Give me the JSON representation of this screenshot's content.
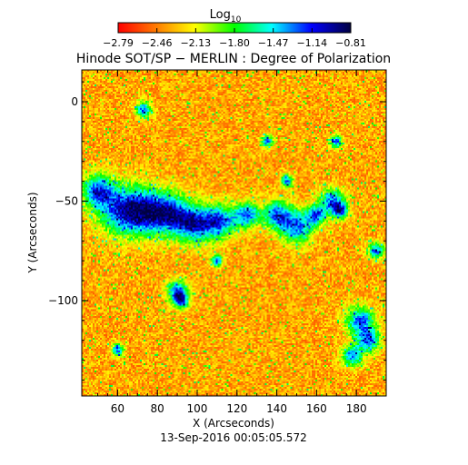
{
  "chart_data": {
    "type": "heatmap",
    "title": "Hinode SOT/SP − MERLIN : Degree of Polarization",
    "xlabel": "X (Arcseconds)",
    "ylabel": "Y (Arcseconds)",
    "date_label": "13-Sep-2016 00:05:05.572",
    "colorbar": {
      "label_base": "Log",
      "label_sub": "10",
      "ticks": [
        "−2.79",
        "−2.46",
        "−2.13",
        "−1.80",
        "−1.47",
        "−1.14",
        "−0.81"
      ],
      "range": [
        -2.79,
        -0.81
      ],
      "colormap": [
        "#ff0000",
        "#ff8000",
        "#ffff00",
        "#00ff00",
        "#00ffff",
        "#0000ff",
        "#000040"
      ]
    },
    "xlim": [
      42,
      195
    ],
    "ylim": [
      -148,
      16
    ],
    "x_ticks": [
      60,
      80,
      100,
      120,
      140,
      160,
      180
    ],
    "y_ticks": [
      0,
      -50,
      -100
    ],
    "y_tick_labels": [
      "0",
      "−50",
      "−100"
    ]
  }
}
